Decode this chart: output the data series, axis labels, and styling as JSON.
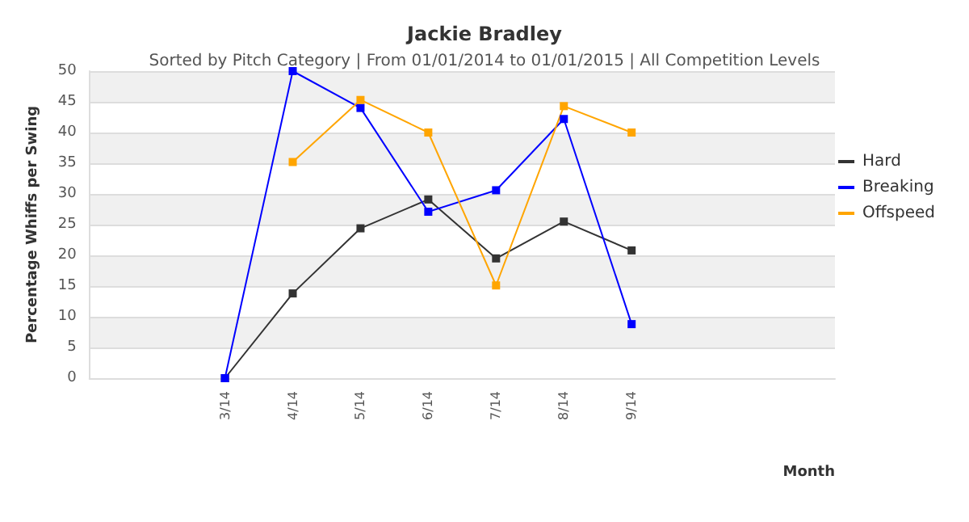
{
  "chart_data": {
    "type": "line",
    "title": "Jackie Bradley",
    "subtitle": "Sorted by Pitch Category | From 01/01/2014 to 01/01/2015 | All Competition Levels",
    "xlabel": "Month",
    "ylabel": "Percentage Whiffs per Swing",
    "categories": [
      null,
      null,
      "3/14",
      "4/14",
      "5/14",
      "6/14",
      "7/14",
      "8/14",
      "9/14",
      null,
      null,
      null
    ],
    "series": [
      {
        "name": "Hard",
        "color": "#333333",
        "values": [
          null,
          null,
          0,
          13.8,
          24.4,
          29.1,
          19.5,
          25.5,
          20.8,
          null,
          null,
          null
        ]
      },
      {
        "name": "Breaking",
        "color": "#0000ff",
        "values": [
          null,
          null,
          0,
          50,
          44,
          27.1,
          30.6,
          42.2,
          8.8,
          null,
          null,
          null
        ]
      },
      {
        "name": "Offspeed",
        "color": "#ffa500",
        "values": [
          null,
          null,
          null,
          35.2,
          45.3,
          40,
          15.1,
          44.3,
          40,
          null,
          null,
          null
        ]
      }
    ],
    "ylim": [
      0,
      50
    ],
    "yticks": [
      0,
      5,
      10,
      15,
      20,
      25,
      30,
      35,
      40,
      45,
      50
    ],
    "grid": "y",
    "legend": "right",
    "marker": "square",
    "line_style": "solid"
  }
}
